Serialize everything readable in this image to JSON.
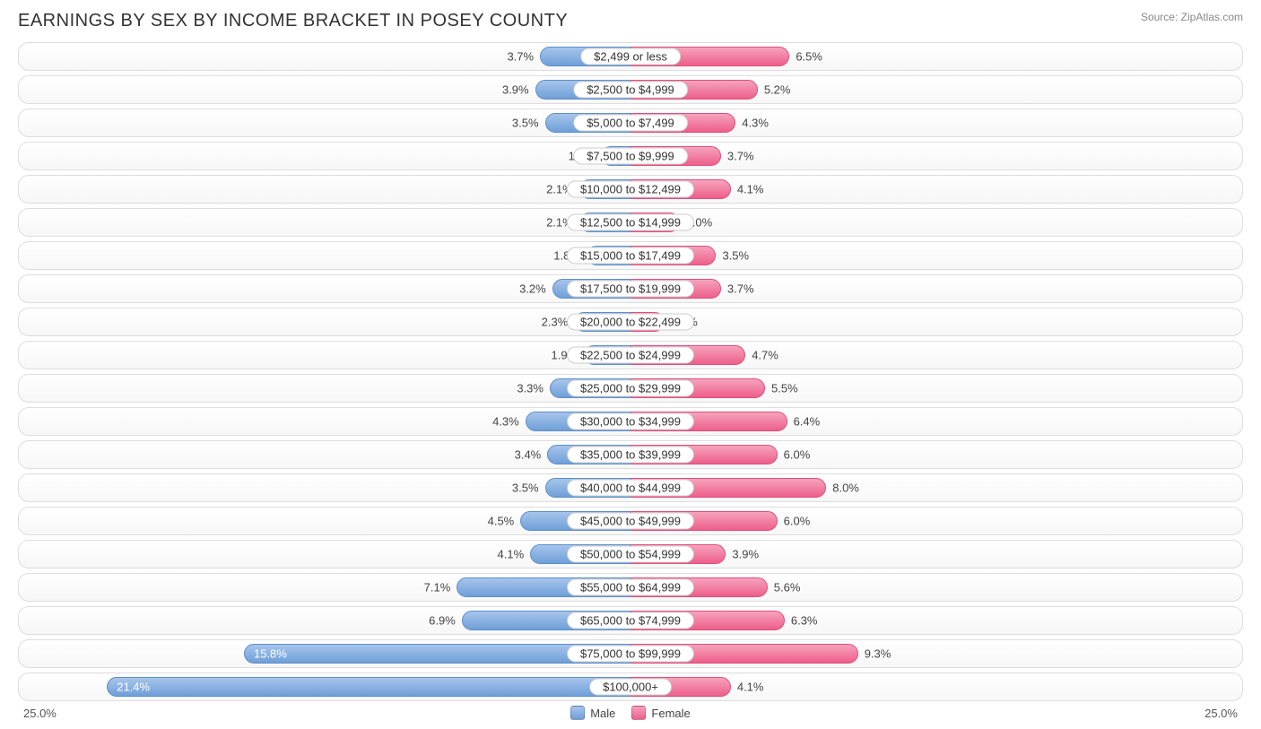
{
  "title": "EARNINGS BY SEX BY INCOME BRACKET IN POSEY COUNTY",
  "source": "Source: ZipAtlas.com",
  "axis_max": 25.0,
  "axis_label_left": "25.0%",
  "axis_label_right": "25.0%",
  "colors": {
    "male_light": "#a7c5eb",
    "male_dark": "#6f9fd8",
    "male_border": "#5b8fc9",
    "female_light": "#f6a3bd",
    "female_dark": "#ed5f8a",
    "female_border": "#e04d7b",
    "track_border": "#dddddd",
    "track_bg_top": "#ffffff",
    "track_bg_bot": "#f7f7f7",
    "text": "#333333",
    "muted": "#888888"
  },
  "legend": {
    "male": "Male",
    "female": "Female"
  },
  "rows": [
    {
      "label": "$2,499 or less",
      "male": 3.7,
      "female": 6.5
    },
    {
      "label": "$2,500 to $4,999",
      "male": 3.9,
      "female": 5.2
    },
    {
      "label": "$5,000 to $7,499",
      "male": 3.5,
      "female": 4.3
    },
    {
      "label": "$7,500 to $9,999",
      "male": 1.2,
      "female": 3.7
    },
    {
      "label": "$10,000 to $12,499",
      "male": 2.1,
      "female": 4.1
    },
    {
      "label": "$12,500 to $14,999",
      "male": 2.1,
      "female": 2.0
    },
    {
      "label": "$15,000 to $17,499",
      "male": 1.8,
      "female": 3.5
    },
    {
      "label": "$17,500 to $19,999",
      "male": 3.2,
      "female": 3.7
    },
    {
      "label": "$20,000 to $22,499",
      "male": 2.3,
      "female": 1.4
    },
    {
      "label": "$22,500 to $24,999",
      "male": 1.9,
      "female": 4.7
    },
    {
      "label": "$25,000 to $29,999",
      "male": 3.3,
      "female": 5.5
    },
    {
      "label": "$30,000 to $34,999",
      "male": 4.3,
      "female": 6.4
    },
    {
      "label": "$35,000 to $39,999",
      "male": 3.4,
      "female": 6.0
    },
    {
      "label": "$40,000 to $44,999",
      "male": 3.5,
      "female": 8.0
    },
    {
      "label": "$45,000 to $49,999",
      "male": 4.5,
      "female": 6.0
    },
    {
      "label": "$50,000 to $54,999",
      "male": 4.1,
      "female": 3.9
    },
    {
      "label": "$55,000 to $64,999",
      "male": 7.1,
      "female": 5.6
    },
    {
      "label": "$65,000 to $74,999",
      "male": 6.9,
      "female": 6.3
    },
    {
      "label": "$75,000 to $99,999",
      "male": 15.8,
      "female": 9.3
    },
    {
      "label": "$100,000+",
      "male": 21.4,
      "female": 4.1
    }
  ]
}
